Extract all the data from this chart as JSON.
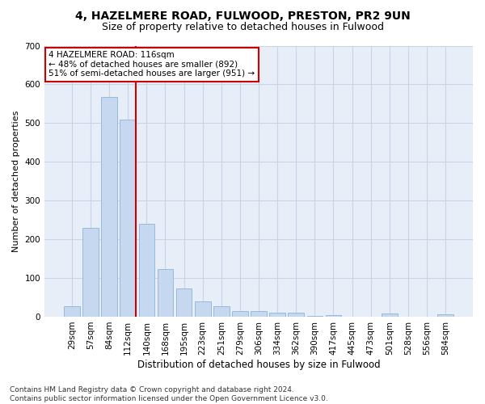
{
  "title1": "4, HAZELMERE ROAD, FULWOOD, PRESTON, PR2 9UN",
  "title2": "Size of property relative to detached houses in Fulwood",
  "xlabel": "Distribution of detached houses by size in Fulwood",
  "ylabel": "Number of detached properties",
  "categories": [
    "29sqm",
    "57sqm",
    "84sqm",
    "112sqm",
    "140sqm",
    "168sqm",
    "195sqm",
    "223sqm",
    "251sqm",
    "279sqm",
    "306sqm",
    "334sqm",
    "362sqm",
    "390sqm",
    "417sqm",
    "445sqm",
    "473sqm",
    "501sqm",
    "528sqm",
    "556sqm",
    "584sqm"
  ],
  "values": [
    27,
    230,
    568,
    510,
    240,
    122,
    72,
    40,
    26,
    15,
    14,
    10,
    10,
    2,
    5,
    0,
    0,
    8,
    0,
    0,
    7
  ],
  "bar_color": "#c5d8f0",
  "bar_edge_color": "#8ab4d8",
  "vline_color": "#cc0000",
  "vline_x_index": 3,
  "annotation_text": "4 HAZELMERE ROAD: 116sqm\n← 48% of detached houses are smaller (892)\n51% of semi-detached houses are larger (951) →",
  "annotation_box_color": "white",
  "annotation_box_edge": "#cc0000",
  "ylim": [
    0,
    700
  ],
  "yticks": [
    0,
    100,
    200,
    300,
    400,
    500,
    600,
    700
  ],
  "grid_color": "#c8d4e8",
  "background_color": "#e8eef8",
  "footnote": "Contains HM Land Registry data © Crown copyright and database right 2024.\nContains public sector information licensed under the Open Government Licence v3.0.",
  "title_fontsize": 10,
  "subtitle_fontsize": 9,
  "xlabel_fontsize": 8.5,
  "ylabel_fontsize": 8,
  "tick_fontsize": 7.5,
  "annot_fontsize": 7.5,
  "footnote_fontsize": 6.5
}
